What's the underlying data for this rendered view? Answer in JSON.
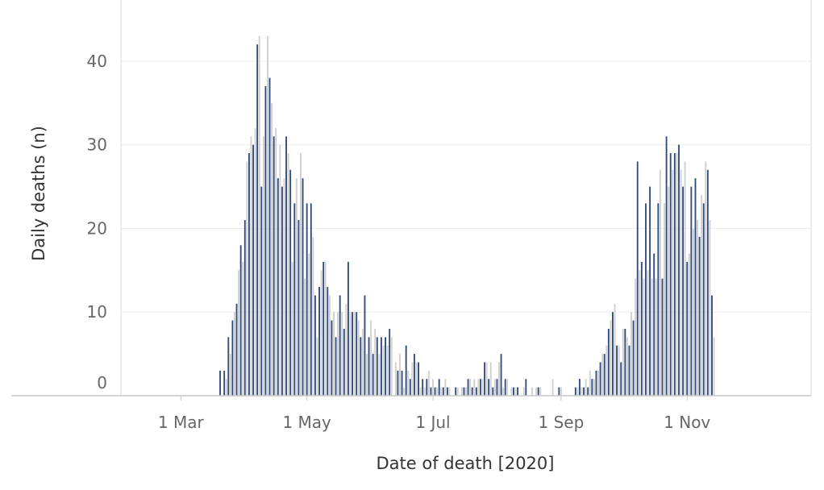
{
  "chart_data": {
    "type": "bar",
    "title": "",
    "xlabel": "Date of death [2020]",
    "ylabel": "Daily deaths (n)",
    "x_start": "2020-02-01",
    "x_end": "2020-12-31",
    "ylim": [
      0,
      45
    ],
    "y_ticks": [
      0,
      10,
      20,
      30,
      40
    ],
    "x_ticks": [
      {
        "date": "2020-03-01",
        "label": "1 Mar"
      },
      {
        "date": "2020-05-01",
        "label": "1 May"
      },
      {
        "date": "2020-07-01",
        "label": "1 Jul"
      },
      {
        "date": "2020-09-01",
        "label": "1 Sep"
      },
      {
        "date": "2020-11-01",
        "label": "1 Nov"
      }
    ],
    "grid": true,
    "series_start": "2020-03-20",
    "highlight_every": 2,
    "colors": {
      "primary": "#2f4a7d",
      "secondary": "#cfcfcf",
      "grid": "#ececec",
      "axis": "#c8c8c8"
    },
    "values": [
      3,
      0,
      3,
      2,
      7,
      5,
      9,
      10,
      11,
      15,
      18,
      16,
      21,
      28,
      29,
      31,
      30,
      32,
      42,
      43,
      25,
      31,
      37,
      43,
      38,
      35,
      31,
      32,
      26,
      30,
      25,
      26,
      31,
      29,
      27,
      16,
      23,
      26,
      21,
      29,
      26,
      14,
      23,
      17,
      23,
      19,
      12,
      7,
      13,
      15,
      16,
      16,
      13,
      12,
      9,
      10,
      7,
      10,
      12,
      10,
      8,
      11,
      16,
      10,
      10,
      10,
      10,
      9,
      7,
      8,
      12,
      5,
      7,
      9,
      5,
      8,
      7,
      5,
      7,
      6,
      7,
      6,
      8,
      7,
      0,
      4,
      3,
      5,
      3,
      1,
      6,
      3,
      2,
      4,
      5,
      4,
      4,
      1,
      2,
      1,
      2,
      3,
      1,
      2,
      1,
      1,
      2,
      1,
      1,
      2,
      1,
      1,
      0,
      0,
      1,
      1,
      0,
      1,
      1,
      1,
      2,
      2,
      1,
      2,
      1,
      2,
      2,
      2,
      4,
      4,
      2,
      4,
      1,
      2,
      2,
      4,
      5,
      1,
      2,
      2,
      0,
      1,
      1,
      1,
      1,
      0,
      0,
      1,
      2,
      0,
      0,
      1,
      0,
      1,
      1,
      1,
      0,
      0,
      0,
      0,
      0,
      2,
      0,
      0,
      1,
      1,
      0,
      0,
      0,
      0,
      0,
      0,
      1,
      1,
      2,
      1,
      1,
      2,
      1,
      3,
      2,
      2,
      3,
      3,
      4,
      5,
      5,
      6,
      8,
      9,
      10,
      11,
      6,
      6,
      4,
      8,
      8,
      7,
      6,
      10,
      9,
      14,
      28,
      15,
      16,
      14,
      23,
      15,
      25,
      14,
      17,
      14,
      23,
      27,
      14,
      23,
      31,
      25,
      29,
      27,
      29,
      29,
      30,
      27,
      25,
      28,
      16,
      17,
      25,
      20,
      26,
      21,
      19,
      24,
      23,
      28,
      27,
      21,
      12,
      7
    ]
  }
}
